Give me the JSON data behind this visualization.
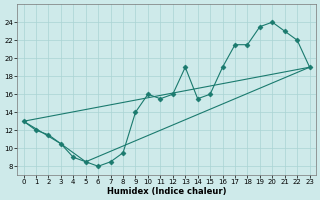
{
  "xlabel": "Humidex (Indice chaleur)",
  "background_color": "#ceeaea",
  "line_color": "#1a7a6e",
  "xlim": [
    -0.5,
    23.5
  ],
  "ylim": [
    7,
    26
  ],
  "xticks": [
    0,
    1,
    2,
    3,
    4,
    5,
    6,
    7,
    8,
    9,
    10,
    11,
    12,
    13,
    14,
    15,
    16,
    17,
    18,
    19,
    20,
    21,
    22,
    23
  ],
  "yticks": [
    8,
    10,
    12,
    14,
    16,
    18,
    20,
    22,
    24
  ],
  "line1_x": [
    0,
    1,
    2,
    3,
    4,
    5,
    6,
    7,
    8,
    9,
    10,
    11,
    12,
    13,
    14,
    15,
    16,
    17,
    18,
    19,
    20,
    21,
    22,
    23
  ],
  "line1_y": [
    13,
    12,
    11.5,
    10.5,
    9,
    8.5,
    8,
    8.5,
    9.5,
    14,
    16,
    15.5,
    16,
    19,
    15.5,
    16,
    19,
    21.5,
    21.5,
    23.5,
    24,
    23,
    22,
    19
  ],
  "line2_x": [
    0,
    23
  ],
  "line2_y": [
    13,
    19
  ],
  "line3_x": [
    0,
    3,
    5,
    23
  ],
  "line3_y": [
    13,
    10.5,
    8.5,
    19
  ],
  "marker": "D",
  "markersize": 2.5
}
